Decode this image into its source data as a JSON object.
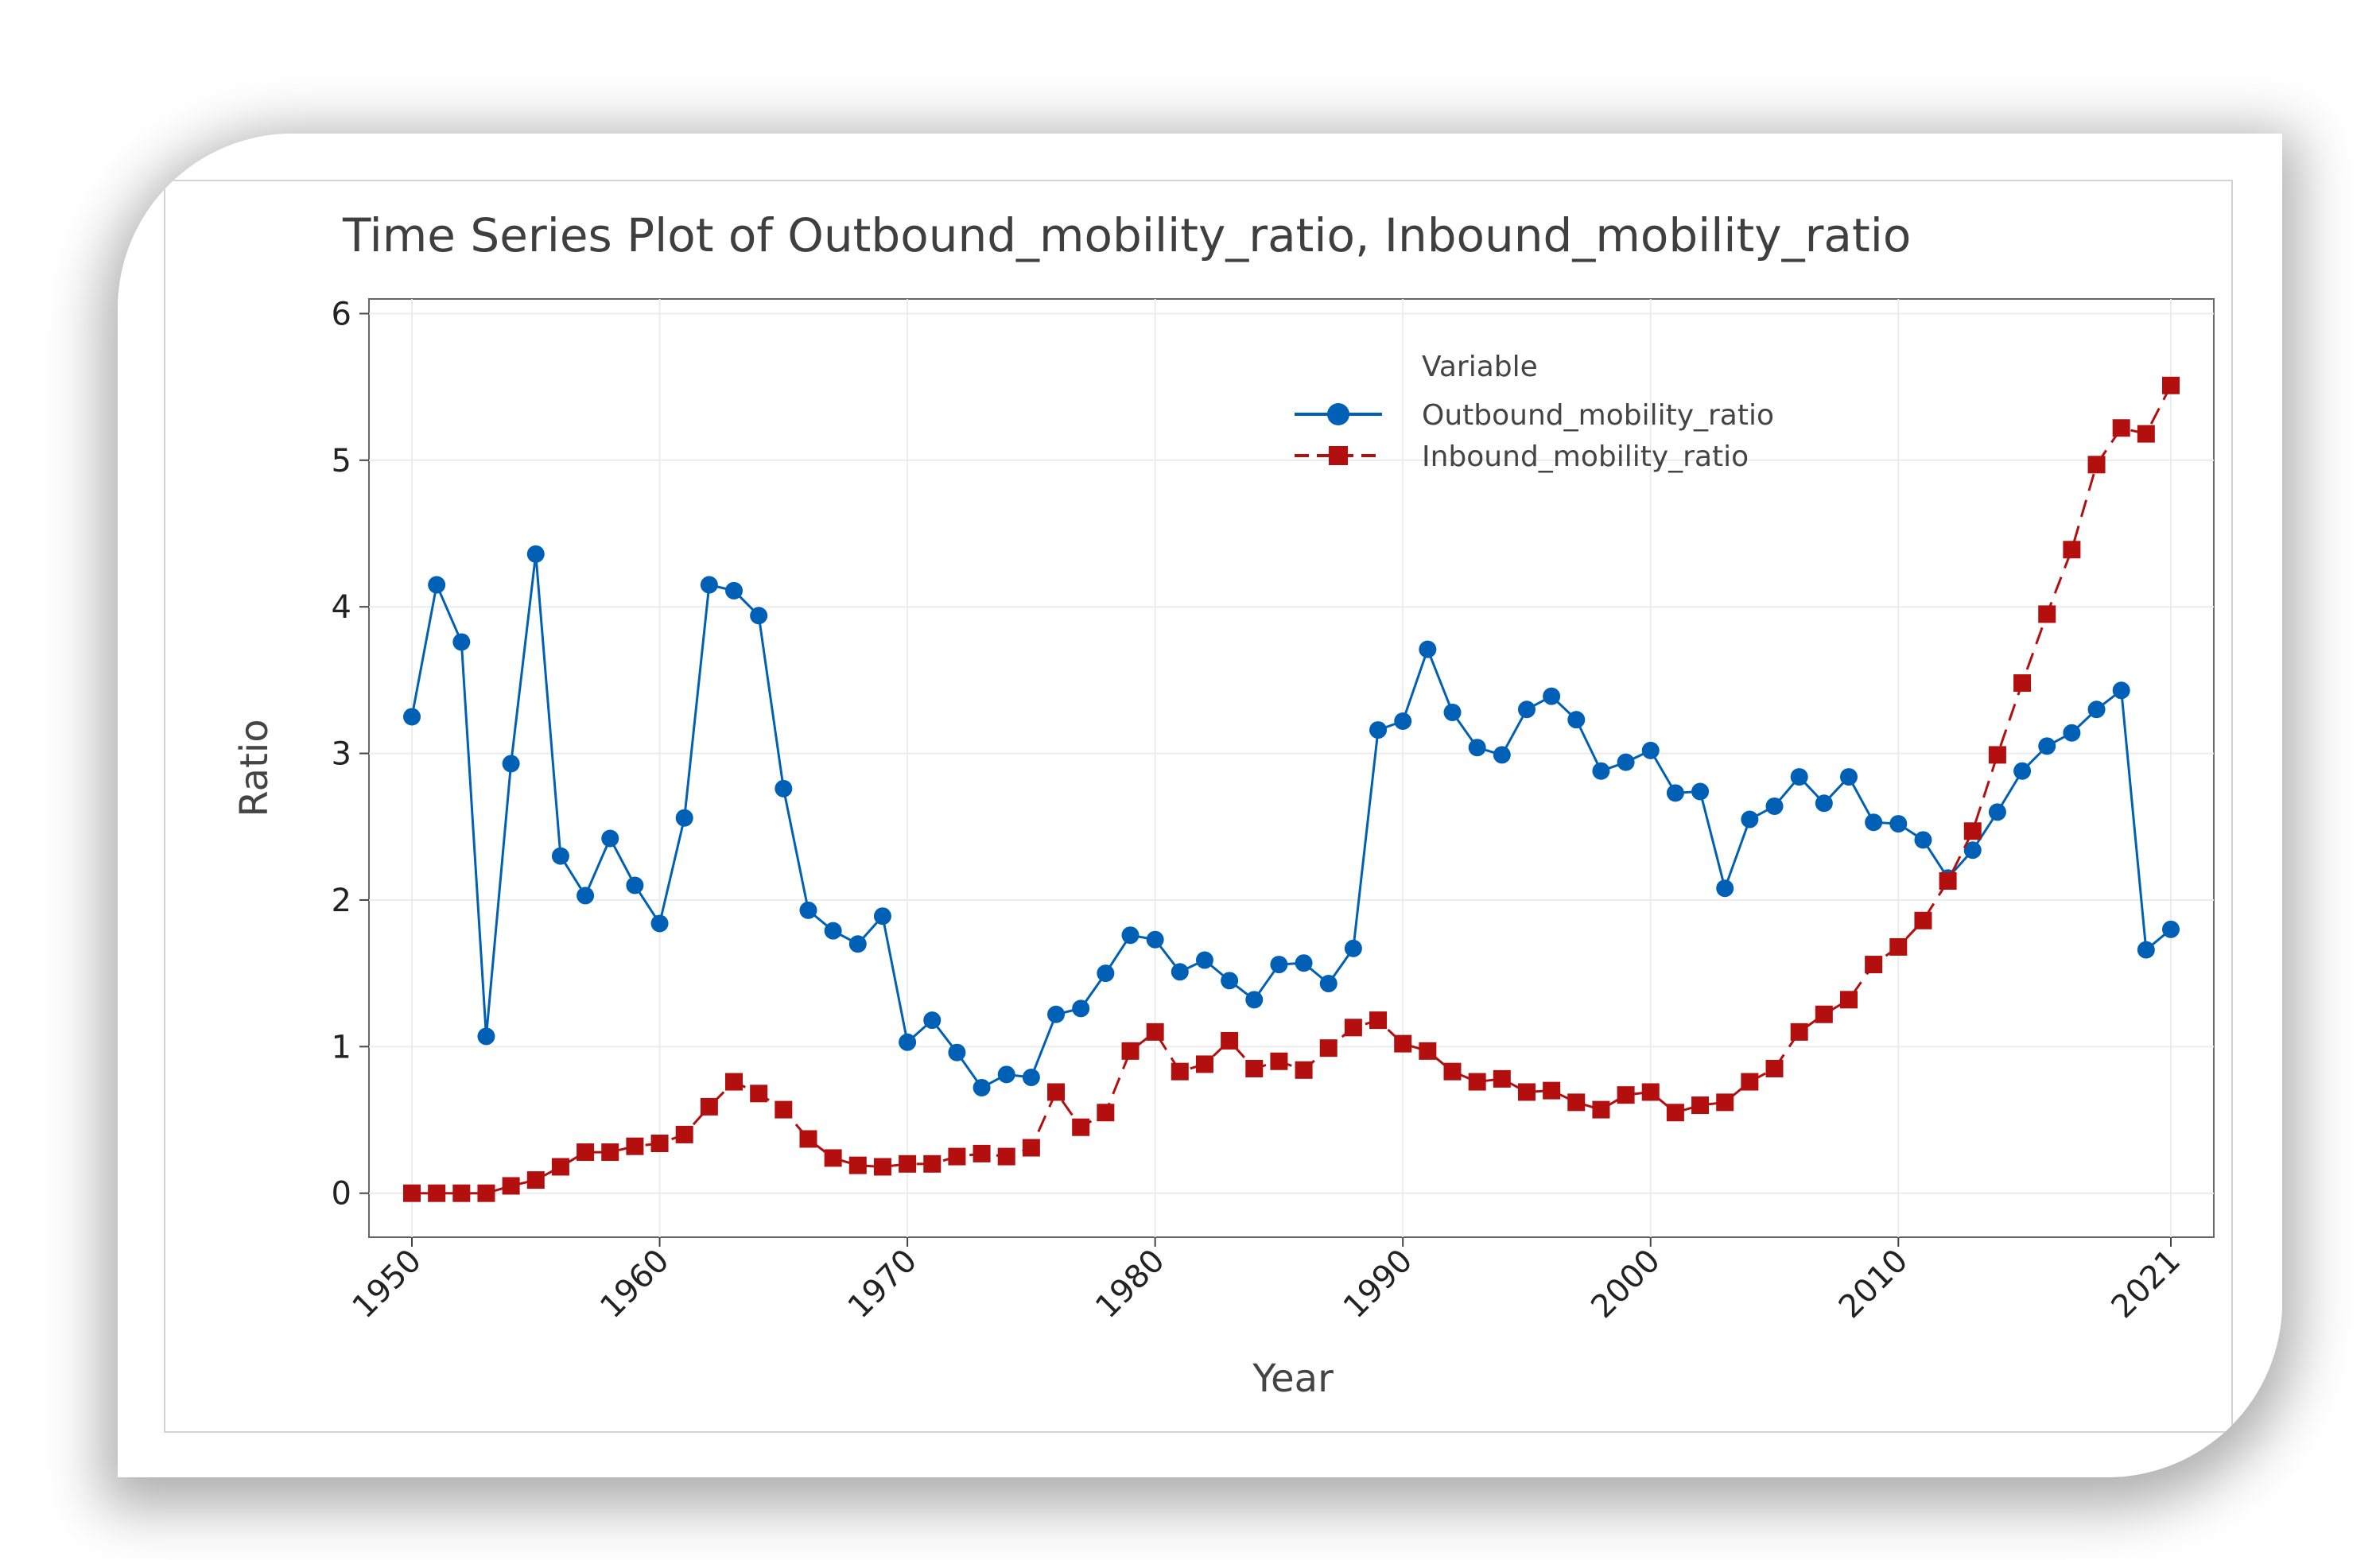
{
  "chart_data": {
    "type": "line",
    "title": "Time Series Plot of Outbound_mobility_ratio, Inbound_mobility_ratio",
    "xlabel": "Year",
    "ylabel": "Ratio",
    "xlim": [
      1950,
      2021
    ],
    "ylim": [
      -0.3,
      6.1
    ],
    "x_ticks": [
      1950,
      1960,
      1970,
      1980,
      1990,
      2000,
      2010,
      2021
    ],
    "y_ticks": [
      0,
      1,
      2,
      3,
      4,
      5,
      6
    ],
    "grid": true,
    "legend": {
      "title": "Variable",
      "placement": "top-right"
    },
    "x": [
      1950,
      1951,
      1952,
      1953,
      1954,
      1955,
      1956,
      1957,
      1958,
      1959,
      1960,
      1961,
      1962,
      1963,
      1964,
      1965,
      1966,
      1967,
      1968,
      1969,
      1970,
      1971,
      1972,
      1973,
      1974,
      1975,
      1976,
      1977,
      1978,
      1979,
      1980,
      1981,
      1982,
      1983,
      1984,
      1985,
      1986,
      1987,
      1988,
      1989,
      1990,
      1991,
      1992,
      1993,
      1994,
      1995,
      1996,
      1997,
      1998,
      1999,
      2000,
      2001,
      2002,
      2003,
      2004,
      2005,
      2006,
      2007,
      2008,
      2009,
      2010,
      2011,
      2012,
      2013,
      2014,
      2015,
      2016,
      2017,
      2018,
      2019,
      2020,
      2021
    ],
    "series": [
      {
        "name": "Outbound_mobility_ratio",
        "color": "#0060b6",
        "marker": "circle",
        "line_style": "solid",
        "values": [
          3.25,
          4.15,
          3.76,
          1.07,
          2.93,
          4.36,
          2.3,
          2.03,
          2.42,
          2.1,
          1.84,
          2.56,
          4.15,
          4.11,
          3.94,
          2.76,
          1.93,
          1.79,
          1.7,
          1.89,
          1.03,
          1.18,
          0.96,
          0.72,
          0.81,
          0.79,
          1.22,
          1.26,
          1.5,
          1.76,
          1.73,
          1.51,
          1.59,
          1.45,
          1.32,
          1.56,
          1.57,
          1.43,
          1.67,
          3.16,
          3.22,
          3.71,
          3.28,
          3.04,
          2.99,
          3.3,
          3.39,
          3.23,
          2.88,
          2.94,
          3.02,
          2.73,
          2.74,
          2.08,
          2.55,
          2.64,
          2.84,
          2.66,
          2.84,
          2.53,
          2.52,
          2.41,
          2.15,
          2.34,
          2.6,
          2.88,
          3.05,
          3.14,
          3.3,
          3.43,
          1.66,
          1.8
        ]
      },
      {
        "name": "Inbound_mobility_ratio",
        "color": "#b30f0f",
        "marker": "square",
        "line_style": "dashed",
        "values": [
          0.0,
          0.0,
          0.0,
          0.0,
          0.05,
          0.09,
          0.18,
          0.28,
          0.28,
          0.32,
          0.34,
          0.4,
          0.59,
          0.76,
          0.68,
          0.57,
          0.37,
          0.24,
          0.19,
          0.18,
          0.2,
          0.2,
          0.25,
          0.27,
          0.25,
          0.31,
          0.69,
          0.45,
          0.55,
          0.97,
          1.1,
          0.83,
          0.88,
          1.04,
          0.85,
          0.9,
          0.84,
          0.99,
          1.13,
          1.18,
          1.02,
          0.97,
          0.83,
          0.76,
          0.78,
          0.69,
          0.7,
          0.62,
          0.57,
          0.67,
          0.69,
          0.55,
          0.6,
          0.62,
          0.76,
          0.85,
          1.1,
          1.22,
          1.32,
          1.56,
          1.68,
          1.86,
          2.13,
          2.47,
          2.99,
          3.48,
          3.95,
          4.39,
          4.97,
          5.22,
          5.18,
          5.51
        ]
      }
    ]
  }
}
